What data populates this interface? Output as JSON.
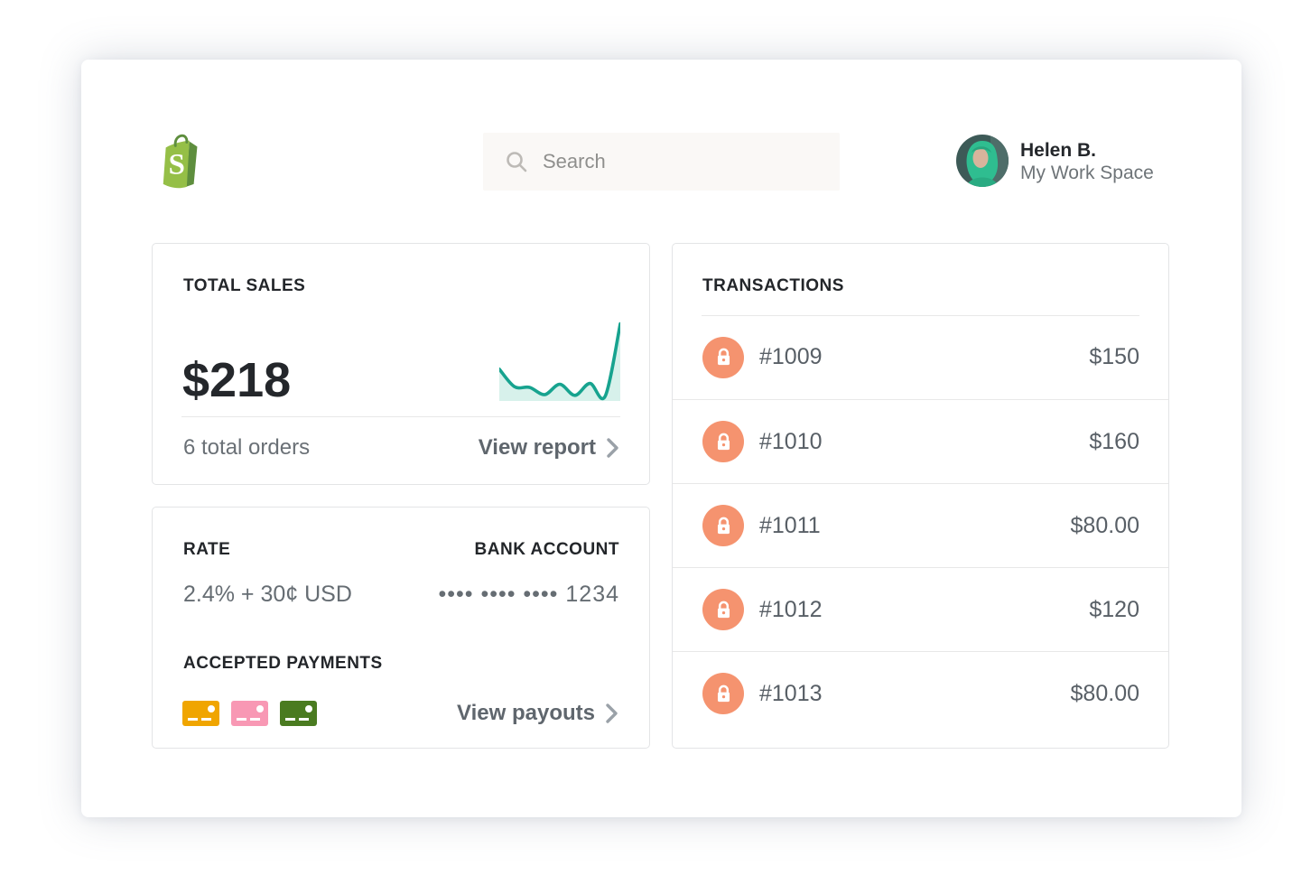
{
  "header": {
    "logo": "shopify",
    "search": {
      "placeholder": "Search"
    },
    "user": {
      "name": "Helen B.",
      "workspace": "My Work Space"
    }
  },
  "total_sales": {
    "title": "TOTAL SALES",
    "amount": "$218",
    "orders_label": "6 total orders",
    "view_report_label": "View report"
  },
  "rate_card": {
    "rate_title": "RATE",
    "rate_value": "2.4% + 30¢ USD",
    "bank_title": "BANK ACCOUNT",
    "bank_value": "•••• •••• •••• 1234",
    "accepted_title": "ACCEPTED PAYMENTS",
    "view_payouts_label": "View payouts",
    "chip_colors": [
      "#f0a500",
      "#f898b4",
      "#4a7b20"
    ]
  },
  "transactions": {
    "title": "TRANSACTIONS",
    "rows": [
      {
        "id": "#1009",
        "amount": "$150"
      },
      {
        "id": "#1010",
        "amount": "$160"
      },
      {
        "id": "#1011",
        "amount": "$80.00"
      },
      {
        "id": "#1012",
        "amount": "$120"
      },
      {
        "id": "#1013",
        "amount": "$80.00"
      }
    ]
  },
  "chart_data": {
    "type": "area",
    "title": "Total sales sparkline",
    "x": [
      0,
      1,
      2,
      3,
      4,
      5,
      6,
      7,
      8
    ],
    "values": [
      40,
      18,
      17,
      8,
      21,
      7,
      22,
      6,
      97
    ],
    "ylim": [
      0,
      100
    ],
    "xlabel": "",
    "ylabel": "",
    "grid": false,
    "legend": false,
    "line_color": "#17a38f",
    "fill_color": "#d7f1eb"
  },
  "colors": {
    "accent_teal": "#17a38f",
    "accent_teal_fill": "#d7f1eb",
    "lock_orange": "#f5936f",
    "shopify_green": "#95bf47",
    "shopify_green_dark": "#5e8e3e",
    "heading_text": "#23262a",
    "body_gray": "#666d73"
  }
}
